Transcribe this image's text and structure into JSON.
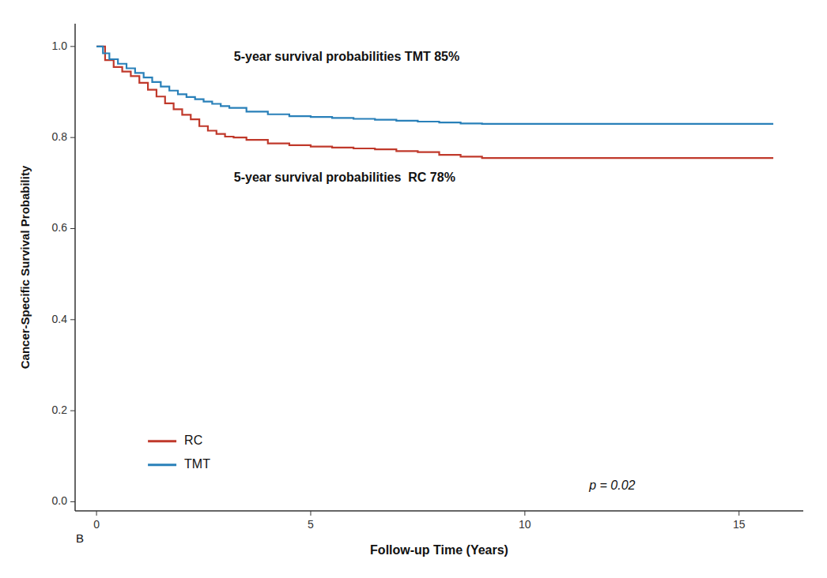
{
  "chart_data": {
    "type": "step",
    "xlabel": "Follow-up Time (Years)",
    "ylabel": "Cancer-Specific Survival Probability",
    "xlim": [
      -0.5,
      16.5
    ],
    "ylim": [
      -0.02,
      1.05
    ],
    "xticks": [
      0,
      5,
      10,
      15
    ],
    "yticks": [
      {
        "value": 0.0,
        "label": "0.0"
      },
      0.2,
      0.4,
      0.6,
      0.8,
      {
        "value": 1.0,
        "label": "1.0"
      }
    ],
    "grid": false,
    "legend": "lower left",
    "annotations": [
      "5-year survival probabilities TMT 85%",
      "5-year survival probabilities  RC 78%",
      "p = 0.02",
      "B"
    ],
    "series": [
      {
        "name": "RC",
        "color": "#C0392B",
        "x": [
          0,
          0.2,
          0.4,
          0.6,
          0.8,
          1.0,
          1.2,
          1.4,
          1.6,
          1.8,
          2.0,
          2.2,
          2.4,
          2.6,
          2.8,
          3.0,
          3.2,
          3.5,
          4.0,
          4.5,
          5.0,
          5.5,
          6.0,
          6.5,
          7.0,
          7.5,
          8.0,
          8.5,
          9.0,
          10.0,
          11.0,
          12.0,
          13.0,
          14.0,
          15.0,
          15.8
        ],
        "values": [
          1.0,
          0.97,
          0.955,
          0.945,
          0.935,
          0.92,
          0.905,
          0.89,
          0.875,
          0.862,
          0.85,
          0.84,
          0.825,
          0.815,
          0.808,
          0.802,
          0.8,
          0.795,
          0.787,
          0.783,
          0.78,
          0.778,
          0.776,
          0.774,
          0.77,
          0.768,
          0.762,
          0.758,
          0.755,
          0.755,
          0.755,
          0.755,
          0.755,
          0.755,
          0.755,
          0.755
        ]
      },
      {
        "name": "TMT",
        "color": "#2980B9",
        "x": [
          0,
          0.15,
          0.3,
          0.5,
          0.7,
          0.9,
          1.1,
          1.3,
          1.5,
          1.7,
          1.9,
          2.1,
          2.3,
          2.5,
          2.7,
          2.9,
          3.1,
          3.5,
          4.0,
          4.5,
          5.0,
          5.5,
          6.0,
          6.5,
          7.0,
          7.5,
          8.0,
          8.5,
          9.0,
          9.5,
          10.0,
          11.0,
          12.0,
          13.0,
          14.0,
          15.0,
          15.8
        ],
        "values": [
          1.0,
          0.985,
          0.972,
          0.962,
          0.952,
          0.942,
          0.932,
          0.922,
          0.912,
          0.903,
          0.895,
          0.889,
          0.884,
          0.879,
          0.874,
          0.869,
          0.865,
          0.857,
          0.851,
          0.847,
          0.845,
          0.843,
          0.841,
          0.839,
          0.837,
          0.835,
          0.833,
          0.831,
          0.83,
          0.83,
          0.83,
          0.83,
          0.83,
          0.83,
          0.83,
          0.83,
          0.83
        ]
      }
    ]
  }
}
